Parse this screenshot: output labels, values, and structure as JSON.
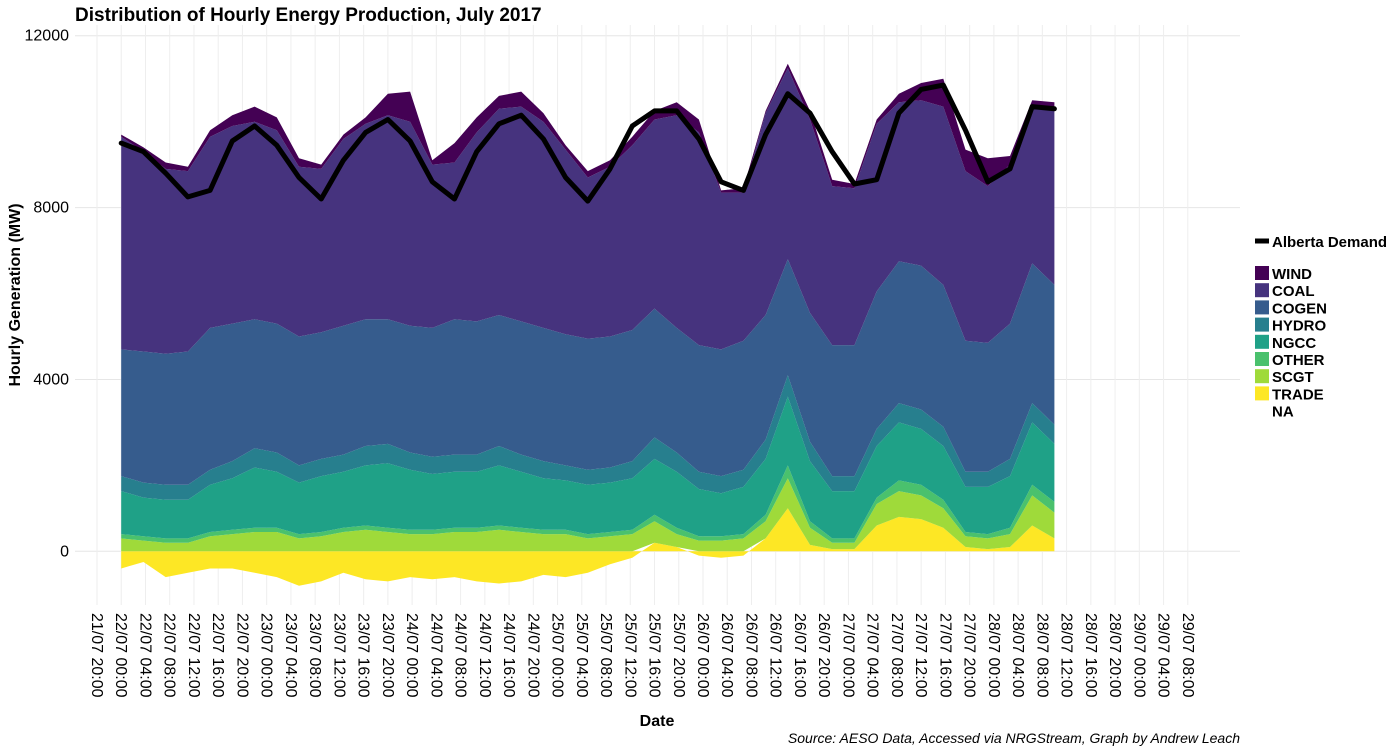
{
  "chart_data": {
    "type": "area",
    "stacked": true,
    "title": "Distribution of Hourly Energy Production, July 2017",
    "xlabel": "Date",
    "ylabel": "Hourly Generation (MW)",
    "caption": "Source: AESO Data, Accessed via NRGStream, Graph by Andrew Leach",
    "ylim": [
      -1250,
      12250
    ],
    "y_ticks": [
      0,
      4000,
      8000,
      12000
    ],
    "x_ticks": [
      "21/07 20:00",
      "22/07 00:00",
      "22/07 04:00",
      "22/07 08:00",
      "22/07 12:00",
      "22/07 16:00",
      "22/07 20:00",
      "23/07 00:00",
      "23/07 04:00",
      "23/07 08:00",
      "23/07 12:00",
      "23/07 16:00",
      "23/07 20:00",
      "24/07 00:00",
      "24/07 04:00",
      "24/07 08:00",
      "24/07 12:00",
      "24/07 16:00",
      "24/07 20:00",
      "25/07 00:00",
      "25/07 04:00",
      "25/07 08:00",
      "25/07 12:00",
      "25/07 16:00",
      "25/07 20:00",
      "26/07 00:00",
      "26/07 04:00",
      "26/07 08:00",
      "26/07 12:00",
      "26/07 16:00",
      "26/07 20:00",
      "27/07 00:00",
      "27/07 04:00",
      "27/07 08:00",
      "27/07 12:00",
      "27/07 16:00",
      "27/07 20:00",
      "28/07 00:00",
      "28/07 04:00",
      "28/07 08:00",
      "28/07 12:00",
      "28/07 16:00",
      "28/07 20:00",
      "29/07 00:00",
      "29/07 04:00",
      "29/07 08:00"
    ],
    "grid": true,
    "legend_position": "right",
    "x": [
      "22/07 00:00",
      "22/07 04:00",
      "22/07 08:00",
      "22/07 12:00",
      "22/07 16:00",
      "22/07 20:00",
      "23/07 00:00",
      "23/07 04:00",
      "23/07 08:00",
      "23/07 12:00",
      "23/07 16:00",
      "23/07 20:00",
      "24/07 00:00",
      "24/07 04:00",
      "24/07 08:00",
      "24/07 12:00",
      "24/07 16:00",
      "24/07 20:00",
      "25/07 00:00",
      "25/07 04:00",
      "25/07 08:00",
      "25/07 12:00",
      "25/07 16:00",
      "25/07 20:00",
      "26/07 00:00",
      "26/07 04:00",
      "26/07 08:00",
      "26/07 12:00",
      "26/07 16:00",
      "26/07 20:00",
      "27/07 00:00",
      "27/07 04:00",
      "27/07 08:00",
      "27/07 12:00",
      "27/07 16:00",
      "27/07 20:00",
      "28/07 00:00",
      "28/07 04:00",
      "28/07 08:00",
      "28/07 12:00",
      "28/07 16:00",
      "28/07 20:00",
      "29/07 00:00"
    ],
    "trade": [
      -400,
      -250,
      -600,
      -500,
      -400,
      -400,
      -500,
      -600,
      -800,
      -700,
      -500,
      -650,
      -700,
      -600,
      -650,
      -600,
      -700,
      -750,
      -700,
      -550,
      -600,
      -500,
      -300,
      -150,
      200,
      100,
      -100,
      -150,
      -100,
      300,
      1000,
      150,
      50,
      50,
      600,
      800,
      750,
      550,
      100,
      50,
      100,
      600,
      300
    ],
    "scgt": [
      300,
      250,
      200,
      200,
      350,
      400,
      450,
      450,
      300,
      350,
      450,
      500,
      450,
      400,
      400,
      450,
      450,
      500,
      450,
      400,
      400,
      300,
      350,
      400,
      500,
      300,
      250,
      250,
      300,
      400,
      700,
      400,
      150,
      150,
      500,
      600,
      550,
      450,
      250,
      250,
      300,
      700,
      600
    ],
    "other": [
      100,
      100,
      100,
      100,
      100,
      100,
      100,
      100,
      100,
      100,
      100,
      100,
      100,
      100,
      100,
      100,
      100,
      100,
      100,
      100,
      100,
      100,
      100,
      100,
      150,
      150,
      100,
      100,
      100,
      150,
      300,
      150,
      100,
      100,
      150,
      250,
      250,
      200,
      100,
      100,
      150,
      250,
      250
    ],
    "ngcc": [
      1000,
      900,
      900,
      900,
      1100,
      1200,
      1400,
      1300,
      1200,
      1300,
      1300,
      1400,
      1500,
      1400,
      1300,
      1300,
      1300,
      1400,
      1300,
      1200,
      1150,
      1150,
      1150,
      1200,
      1300,
      1300,
      1100,
      1000,
      1100,
      1300,
      1600,
      1400,
      1100,
      1100,
      1200,
      1350,
      1300,
      1250,
      1050,
      1100,
      1200,
      1450,
      1350
    ],
    "hydro": [
      350,
      350,
      350,
      350,
      350,
      400,
      450,
      450,
      400,
      400,
      400,
      450,
      450,
      400,
      400,
      400,
      400,
      450,
      400,
      400,
      350,
      350,
      350,
      400,
      500,
      450,
      400,
      400,
      400,
      450,
      500,
      450,
      350,
      350,
      400,
      450,
      450,
      450,
      350,
      350,
      400,
      450,
      450
    ],
    "cogen": [
      2950,
      3050,
      3050,
      3100,
      3300,
      3200,
      3000,
      3000,
      3000,
      2950,
      3000,
      2950,
      2900,
      2950,
      3000,
      3150,
      3100,
      3050,
      3100,
      3100,
      3050,
      3050,
      3050,
      3050,
      3000,
      2900,
      2950,
      2950,
      3000,
      2900,
      2700,
      3000,
      3050,
      3050,
      3200,
      3300,
      3350,
      3300,
      3050,
      3000,
      3150,
      3250,
      3250
    ],
    "coal": [
      4950,
      4650,
      4300,
      4200,
      4450,
      4600,
      4600,
      4500,
      3950,
      3800,
      4350,
      4550,
      4750,
      4750,
      3800,
      3650,
      4400,
      4800,
      5000,
      4800,
      4300,
      3750,
      3950,
      4300,
      4400,
      4950,
      4950,
      3650,
      3450,
      4700,
      4450,
      4500,
      3700,
      3650,
      3900,
      3700,
      3850,
      4150,
      3950,
      3650,
      3700,
      3700,
      4100
    ],
    "wind": [
      50,
      100,
      150,
      100,
      150,
      250,
      350,
      300,
      200,
      100,
      100,
      150,
      500,
      700,
      100,
      450,
      350,
      300,
      350,
      200,
      100,
      150,
      150,
      200,
      200,
      300,
      300,
      50,
      100,
      50,
      100,
      200,
      150,
      100,
      100,
      200,
      400,
      650,
      500,
      650,
      200,
      100,
      150
    ],
    "alberta_demand": [
      9500,
      9300,
      8800,
      8250,
      8400,
      9550,
      9900,
      9450,
      8700,
      8200,
      9100,
      9750,
      10050,
      9550,
      8600,
      8200,
      9300,
      9950,
      10150,
      9600,
      8700,
      8150,
      8900,
      9900,
      10250,
      10250,
      9600,
      8600,
      8400,
      9700,
      10650,
      10200,
      9300,
      8550,
      8650,
      10200,
      10750,
      10850,
      9800,
      8600,
      8900,
      10350,
      10300
    ]
  },
  "legend": {
    "demand_label": "Alberta Demand",
    "items": [
      {
        "key": "wind",
        "label": "WIND",
        "color": "#440154"
      },
      {
        "key": "coal",
        "label": "COAL",
        "color": "#46337E"
      },
      {
        "key": "cogen",
        "label": "COGEN",
        "color": "#365C8D"
      },
      {
        "key": "hydro",
        "label": "HYDRO",
        "color": "#277F8E"
      },
      {
        "key": "ngcc",
        "label": "NGCC",
        "color": "#1FA187"
      },
      {
        "key": "other",
        "label": "OTHER",
        "color": "#4AC16D"
      },
      {
        "key": "scgt",
        "label": "SCGT",
        "color": "#9FDA3A"
      },
      {
        "key": "trade",
        "label": "TRADE",
        "color": "#FDE725"
      },
      {
        "key": "na",
        "label": "NA",
        "color": ""
      }
    ]
  }
}
